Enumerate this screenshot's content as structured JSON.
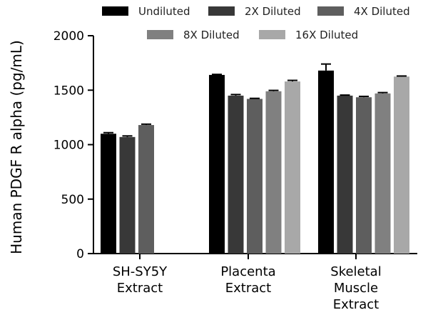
{
  "chart_data": {
    "type": "bar",
    "title": "",
    "xlabel": "",
    "ylabel": "Human PDGF R alpha (pg/mL)",
    "ylim": [
      0,
      2000
    ],
    "yticks": [
      0,
      500,
      1000,
      1500,
      2000
    ],
    "grid": false,
    "legend_position": "top",
    "categories": [
      [
        "SH-SY5Y",
        "Extract"
      ],
      [
        "Placenta",
        "Extract"
      ],
      [
        "Skeletal",
        "Muscle",
        "Extract"
      ]
    ],
    "series": [
      {
        "name": "Undiluted",
        "color": "#000000",
        "values": [
          1100,
          1640,
          1680
        ],
        "errors": [
          10,
          5,
          60
        ]
      },
      {
        "name": "2X Diluted",
        "color": "#383838",
        "values": [
          1070,
          1450,
          1450
        ],
        "errors": [
          10,
          10,
          5
        ]
      },
      {
        "name": "4X Diluted",
        "color": "#5e5e5e",
        "values": [
          1180,
          1420,
          1435
        ],
        "errors": [
          8,
          5,
          8
        ]
      },
      {
        "name": "8X Diluted",
        "color": "#808080",
        "values": [
          null,
          1490,
          1470
        ],
        "errors": [
          null,
          8,
          8
        ]
      },
      {
        "name": "16X Diluted",
        "color": "#a8a8a8",
        "values": [
          null,
          1580,
          1625
        ],
        "errors": [
          null,
          10,
          5
        ]
      }
    ]
  }
}
